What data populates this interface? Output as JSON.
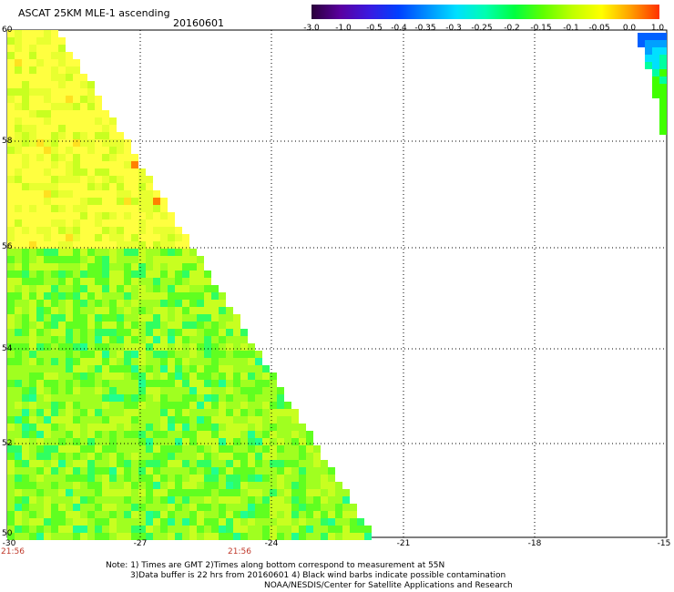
{
  "header": {
    "title": "ASCAT 25KM MLE-1 ascending",
    "date": "20160601"
  },
  "colorbar": {
    "labels": [
      "-3.0",
      "-1.0",
      "-0.5",
      "-0.4",
      "-0.35",
      "-0.3",
      "-0.25",
      "-0.2",
      "-0.15",
      "-0.1",
      "-0.05",
      "0.0",
      "1.0"
    ],
    "colors": [
      "#2a003a",
      "#5a00a0",
      "#3a1ae0",
      "#0040ff",
      "#0090ff",
      "#00e0ff",
      "#00ffb0",
      "#00ff40",
      "#60ff00",
      "#c0ff00",
      "#ffff00",
      "#ffa000",
      "#ff3000"
    ]
  },
  "map": {
    "lat_labels": [
      "60",
      "58",
      "56",
      "54",
      "52",
      "50"
    ],
    "lon_labels": [
      "-30",
      "-27",
      "-24",
      "-21",
      "-18",
      "-15"
    ],
    "time_labels": [
      "21:56",
      "21:56"
    ],
    "swath_colors": [
      "#ffff40",
      "#e8ff30",
      "#c8ff20",
      "#a0ff20",
      "#60ff20",
      "#30ff60",
      "#20ff90",
      "#ffe020",
      "#ff8000"
    ],
    "corner_colors": [
      "#0060ff",
      "#00a0ff",
      "#00e0ff",
      "#00ffa0",
      "#40ff00"
    ]
  },
  "notes": {
    "line1": "Note: 1) Times are GMT 2)Times along bottom correspond to measurement at 55N",
    "line2": "3)Data buffer is 22 hrs from 20160601 4) Black wind barbs indicate possible contamination",
    "line3": "NOAA/NESDIS/Center for Satellite Applications and Research"
  }
}
